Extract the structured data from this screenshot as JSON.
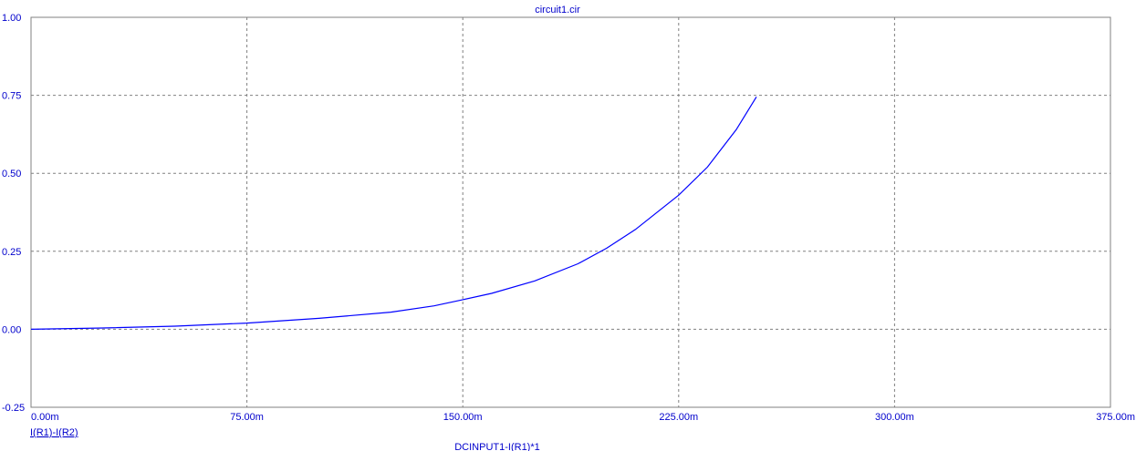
{
  "chart_data": {
    "type": "line",
    "title": "circuit1.cir",
    "xlabel": "DCINPUT1-I(R1)*1",
    "ylabel": "",
    "xlim": [
      0,
      0.375
    ],
    "ylim": [
      -0.25,
      1.0
    ],
    "x_ticks": [
      0,
      0.075,
      0.15,
      0.225,
      0.3,
      0.375
    ],
    "x_tick_labels": [
      "0.00m",
      "75.00m",
      "150.00m",
      "225.00m",
      "300.00m",
      "375.00m"
    ],
    "y_ticks": [
      -0.25,
      0,
      0.25,
      0.5,
      0.75,
      1.0
    ],
    "y_tick_labels": [
      "-0.25",
      "0.00",
      "0.25",
      "0.50",
      "0.75",
      "1.00"
    ],
    "grid": true,
    "series": [
      {
        "name": "I(R1)-I(R2)",
        "color": "#0000ff",
        "x": [
          0,
          0.025,
          0.05,
          0.075,
          0.1,
          0.125,
          0.14,
          0.15,
          0.16,
          0.175,
          0.19,
          0.2,
          0.21,
          0.225,
          0.235,
          0.245,
          0.252
        ],
        "y": [
          0,
          0.004,
          0.01,
          0.02,
          0.035,
          0.055,
          0.075,
          0.095,
          0.115,
          0.155,
          0.21,
          0.26,
          0.32,
          0.43,
          0.52,
          0.64,
          0.745
        ]
      }
    ]
  }
}
